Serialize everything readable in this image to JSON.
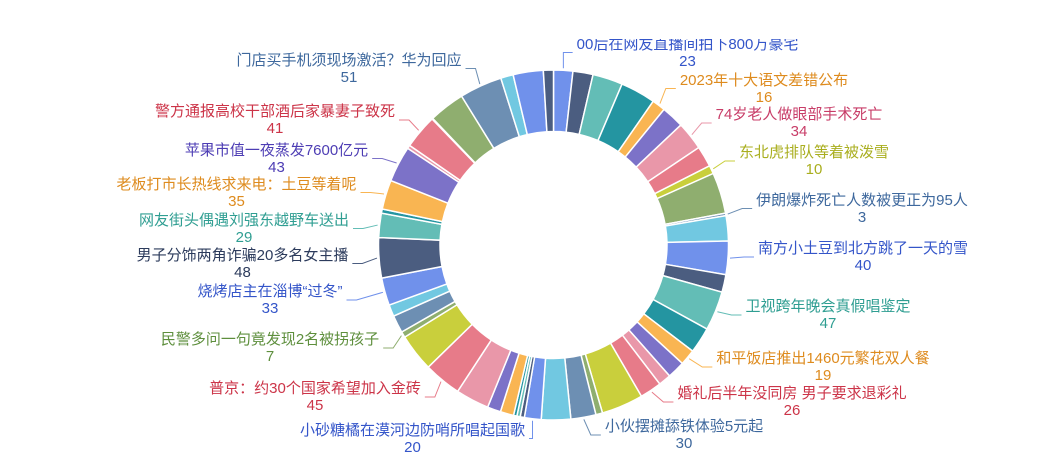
{
  "chart_data": {
    "type": "pie",
    "variant": "donut",
    "title": "",
    "legend": null,
    "palette": [
      {
        "fill": "#7091eb",
        "label": "#3455c9"
      },
      {
        "fill": "#4b5d80",
        "label": "#2c3b5c"
      },
      {
        "fill": "#63bdb6",
        "label": "#2f9e92"
      },
      {
        "fill": "#2495a1",
        "label": "#1d7c86"
      },
      {
        "fill": "#f9b552",
        "label": "#de8b1e"
      },
      {
        "fill": "#7c72c8",
        "label": "#4d3db4"
      },
      {
        "fill": "#e997a9",
        "label": "#c83d68"
      },
      {
        "fill": "#e77b89",
        "label": "#cc3448"
      },
      {
        "fill": "#c9cf3c",
        "label": "#a9ae1e"
      },
      {
        "fill": "#8fae6f",
        "label": "#5e8f3d"
      },
      {
        "fill": "#6d8fb3",
        "label": "#3e689d"
      },
      {
        "fill": "#71c8e1",
        "label": "#2f93b3"
      }
    ],
    "segments": [
      {
        "name": "00后在网友直播间拍下800万豪宅",
        "value": 23,
        "color": "#7091eb",
        "label_color": "#3455c9"
      },
      {
        "value": 24,
        "color": "#4b5d80"
      },
      {
        "value": 36,
        "color": "#63bdb6"
      },
      {
        "value": 42,
        "color": "#2495a1"
      },
      {
        "name": "2023年十大语文差错公布",
        "value": 16,
        "color": "#f9b552",
        "label_color": "#de8b1e"
      },
      {
        "value": 27,
        "color": "#7c72c8"
      },
      {
        "name": "74岁老人做眼部手术死亡",
        "value": 34,
        "color": "#e997a9",
        "label_color": "#c83d68"
      },
      {
        "value": 25,
        "color": "#e77b89"
      },
      {
        "name": "东北虎排队等着被泼雪",
        "value": 10,
        "color": "#c9cf3c",
        "label_color": "#a9ae1e"
      },
      {
        "value": 49,
        "color": "#8fae6f"
      },
      {
        "name": "伊朗爆炸死亡人数被更正为95人",
        "value": 3,
        "color": "#6d8fb3",
        "label_color": "#3e689d"
      },
      {
        "value": 30,
        "color": "#71c8e1"
      },
      {
        "name": "南方小土豆到北方跳了一天的雪",
        "value": 40,
        "color": "#7091eb",
        "label_color": "#3455c9"
      },
      {
        "value": 21,
        "color": "#4b5d80"
      },
      {
        "name": "卫视跨年晚会真假唱鉴定",
        "value": 47,
        "color": "#63bdb6",
        "label_color": "#2f9e92"
      },
      {
        "value": 31,
        "color": "#2495a1"
      },
      {
        "name": "和平饭店推出1460元繁花双人餐",
        "value": 19,
        "color": "#f9b552",
        "label_color": "#de8b1e"
      },
      {
        "value": 21,
        "color": "#7c72c8"
      },
      {
        "value": 15,
        "color": "#e997a9"
      },
      {
        "name": "婚礼后半年没同房 男子要求退彩礼",
        "value": 26,
        "color": "#e77b89",
        "label_color": "#cc3448"
      },
      {
        "value": 50,
        "color": "#c9cf3c"
      },
      {
        "value": 8,
        "color": "#8fae6f"
      },
      {
        "name": "小伙摆摊舔铁体验5元起",
        "value": 30,
        "color": "#6d8fb3",
        "label_color": "#3e689d"
      },
      {
        "value": 35,
        "color": "#71c8e1"
      },
      {
        "name": "小砂糖橘在漠河边防哨所唱起国歌",
        "value": 20,
        "color": "#7091eb",
        "label_color": "#3455c9"
      },
      {
        "value": 5,
        "color": "#4b5d80"
      },
      {
        "value": 4,
        "color": "#63bdb6"
      },
      {
        "value": 4,
        "color": "#2495a1"
      },
      {
        "value": 16,
        "color": "#f9b552"
      },
      {
        "value": 16,
        "color": "#7c72c8"
      },
      {
        "value": 40,
        "color": "#e997a9"
      },
      {
        "name": "普京：约30个国家希望加入金砖",
        "value": 45,
        "color": "#e77b89",
        "label_color": "#cc3448"
      },
      {
        "value": 45,
        "color": "#c9cf3c"
      },
      {
        "name": "民警多问一句竟发现2名被拐孩子",
        "value": 7,
        "color": "#8fae6f",
        "label_color": "#5e8f3d"
      },
      {
        "value": 21,
        "color": "#6d8fb3"
      },
      {
        "value": 14,
        "color": "#71c8e1"
      },
      {
        "name": "烧烤店主在淄博“过冬”",
        "value": 33,
        "color": "#7091eb",
        "label_color": "#3455c9"
      },
      {
        "name": "男子分饰两角诈骗20多名女主播",
        "value": 48,
        "color": "#4b5d80",
        "label_color": "#2c3b5c"
      },
      {
        "name": "网友街头偶遇刘强东越野车送出",
        "value": 29,
        "color": "#63bdb6",
        "label_color": "#2f9e92"
      },
      {
        "value": 5,
        "color": "#2495a1"
      },
      {
        "name": "老板打市长热线求来电：土豆等着呢",
        "value": 35,
        "color": "#f9b552",
        "label_color": "#de8b1e"
      },
      {
        "name": "苹果市值一夜蒸发7600亿元",
        "value": 43,
        "color": "#7c72c8",
        "label_color": "#4d3db4"
      },
      {
        "value": 4,
        "color": "#e997a9"
      },
      {
        "name": "警方通报高校干部酒后家暴妻子致死",
        "value": 41,
        "color": "#e77b89",
        "label_color": "#cc3448"
      },
      {
        "value": 1,
        "color": "#c9cf3c"
      },
      {
        "value": 43,
        "color": "#8fae6f"
      },
      {
        "name": "门店买手机须现场激活？华为回应",
        "value": 51,
        "color": "#6d8fb3",
        "label_color": "#3e689d"
      },
      {
        "value": 15,
        "color": "#71c8e1"
      },
      {
        "value": 36,
        "color": "#7091eb"
      },
      {
        "value": 12,
        "color": "#4b5d80"
      }
    ]
  }
}
